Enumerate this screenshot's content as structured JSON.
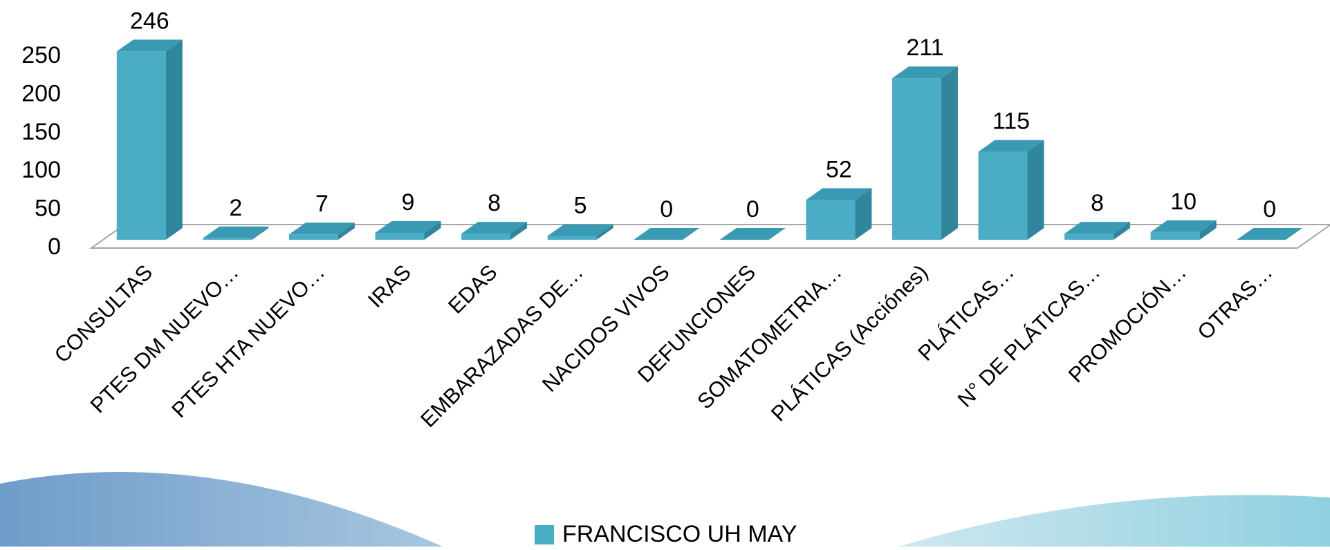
{
  "chart_data": {
    "type": "bar3d",
    "categories": [
      "CONSULTAS",
      "PTES DM NUEVO…",
      "PTES HTA NUEVO…",
      "IRAS",
      "EDAS",
      "EMBARAZADAS DE…",
      "NACIDOS VIVOS",
      "DEFUNCIONES",
      "SOMATOMETRIA…",
      "PLÁTICAS (Acciónes)",
      "PLÁTICAS…",
      "N° DE PLÁTICAS…",
      "PROMOCIÓN…",
      "OTRAS…"
    ],
    "series": [
      {
        "name": "FRANCISCO UH MAY",
        "color": "#4bacc6",
        "values": [
          246,
          2,
          7,
          9,
          8,
          5,
          0,
          0,
          52,
          211,
          115,
          8,
          10,
          0
        ]
      }
    ],
    "ylim": [
      0,
      250
    ],
    "yticks": [
      0,
      50,
      100,
      150,
      200,
      250
    ],
    "legend": "bottom"
  }
}
